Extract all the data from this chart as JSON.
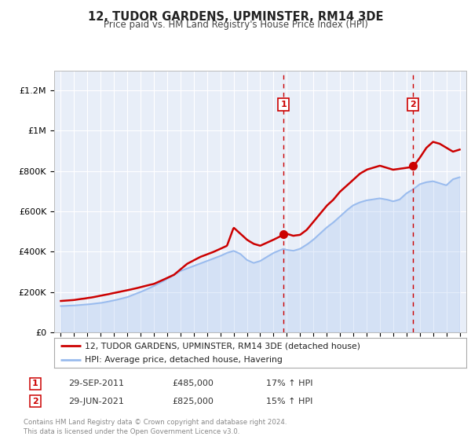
{
  "title": "12, TUDOR GARDENS, UPMINSTER, RM14 3DE",
  "subtitle": "Price paid vs. HM Land Registry's House Price Index (HPI)",
  "ylim": [
    0,
    1300000
  ],
  "xlim_start": 1994.5,
  "xlim_end": 2025.5,
  "ytick_labels": [
    "£0",
    "£200K",
    "£400K",
    "£600K",
    "£800K",
    "£1M",
    "£1.2M"
  ],
  "ytick_values": [
    0,
    200000,
    400000,
    600000,
    800000,
    1000000,
    1200000
  ],
  "background_color": "#ffffff",
  "plot_bg_color": "#e8eef8",
  "grid_color": "#ffffff",
  "red_line_color": "#cc0000",
  "blue_line_color": "#99bbee",
  "sale1_x": 2011.75,
  "sale1_y": 485000,
  "sale2_x": 2021.5,
  "sale2_y": 825000,
  "legend_label1": "12, TUDOR GARDENS, UPMINSTER, RM14 3DE (detached house)",
  "legend_label2": "HPI: Average price, detached house, Havering",
  "annot1_date": "29-SEP-2011",
  "annot1_price": "£485,000",
  "annot1_hpi": "17% ↑ HPI",
  "annot2_date": "29-JUN-2021",
  "annot2_price": "£825,000",
  "annot2_hpi": "15% ↑ HPI",
  "footer1": "Contains HM Land Registry data © Crown copyright and database right 2024.",
  "footer2": "This data is licensed under the Open Government Licence v3.0."
}
